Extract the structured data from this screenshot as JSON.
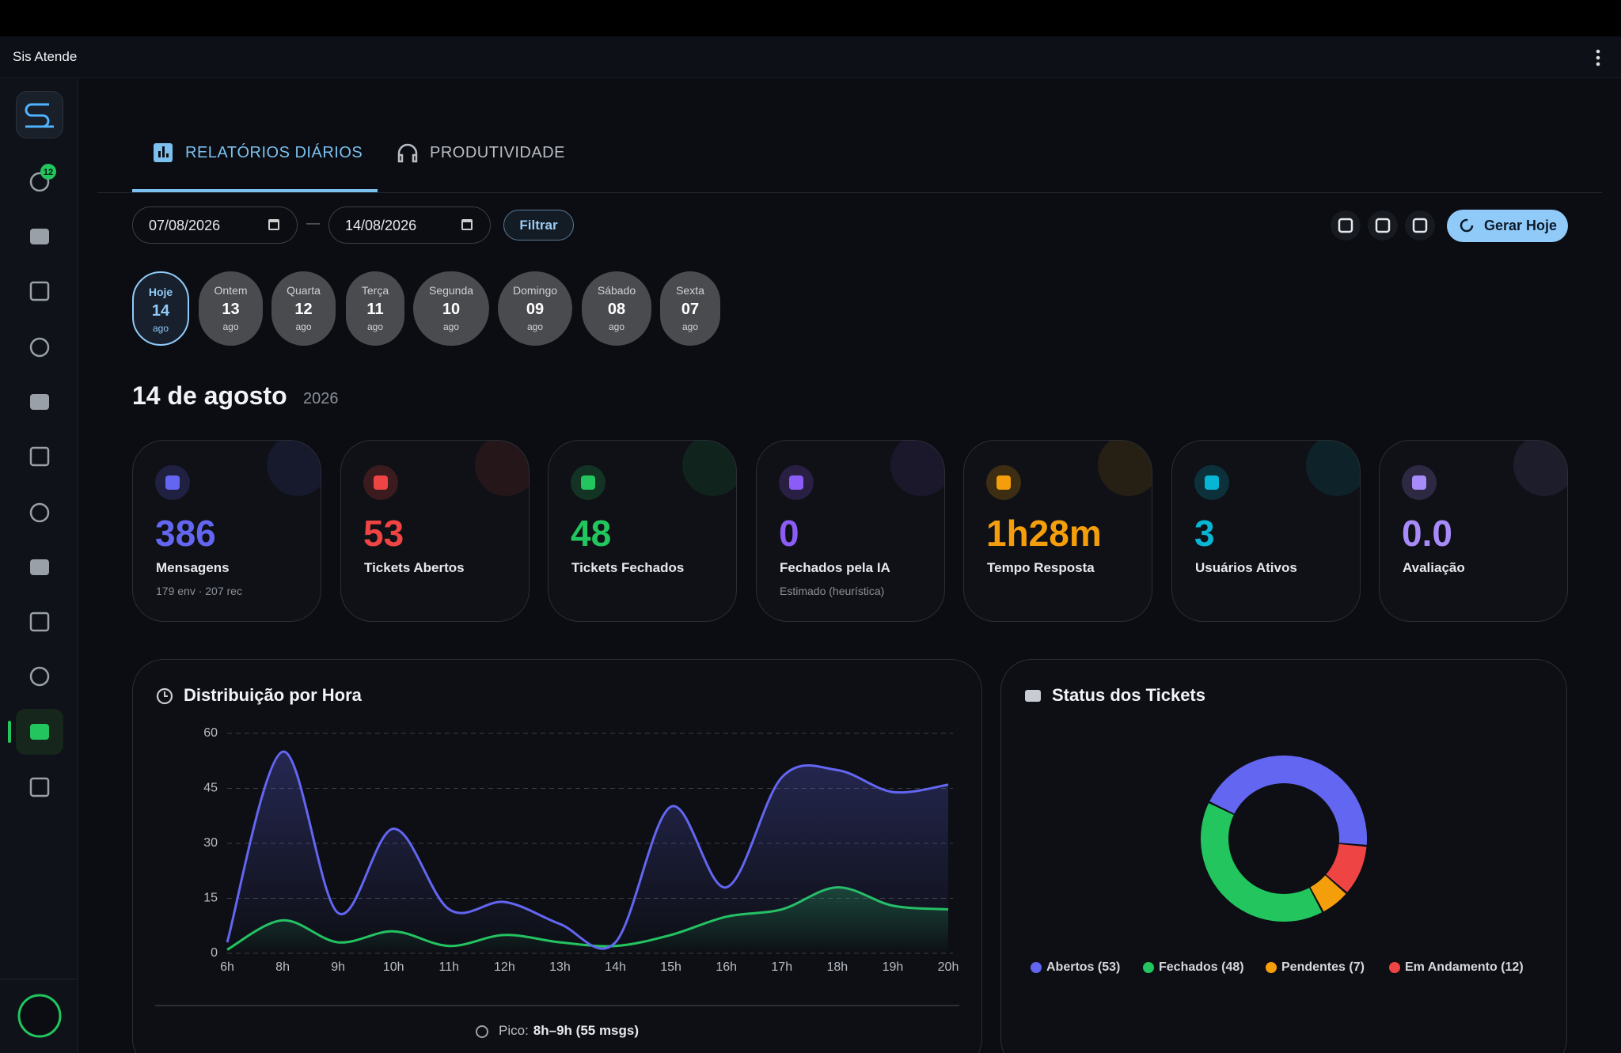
{
  "app_title": "Sis Atende",
  "sidebar": {
    "badge": "12"
  },
  "tabs": [
    "RELATÓRIOS DIÁRIOS",
    "PRODUTIVIDADE"
  ],
  "filters": {
    "start": "07/08/2026",
    "separator": "—",
    "end": "14/08/2026",
    "filter_button": "Filtrar",
    "generate_button": "Gerar Hoje"
  },
  "days": [
    {
      "weekday": "Hoje",
      "day": "14",
      "month": "ago"
    },
    {
      "weekday": "Ontem",
      "day": "13",
      "month": "ago"
    },
    {
      "weekday": "Quarta",
      "day": "12",
      "month": "ago"
    },
    {
      "weekday": "Terça",
      "day": "11",
      "month": "ago"
    },
    {
      "weekday": "Segunda",
      "day": "10",
      "month": "ago"
    },
    {
      "weekday": "Domingo",
      "day": "09",
      "month": "ago"
    },
    {
      "weekday": "Sábado",
      "day": "08",
      "month": "ago"
    },
    {
      "weekday": "Sexta",
      "day": "07",
      "month": "ago"
    }
  ],
  "heading": {
    "date": "14 de agosto",
    "year": "2026"
  },
  "kpis": [
    {
      "value": "386",
      "label": "Mensagens",
      "sub": "179 env · 207 rec",
      "color": "#6366f1"
    },
    {
      "value": "53",
      "label": "Tickets Abertos",
      "color": "#ef4444"
    },
    {
      "value": "48",
      "label": "Tickets Fechados",
      "color": "#22c55e"
    },
    {
      "value": "0",
      "label": "Fechados pela IA",
      "sub": "Estimado (heurística)",
      "color": "#8b5cf6"
    },
    {
      "value": "1h28m",
      "label": "Tempo Resposta",
      "color": "#f59e0b"
    },
    {
      "value": "3",
      "label": "Usuários Ativos",
      "color": "#06b6d4"
    },
    {
      "value": "0.0",
      "label": "Avaliação",
      "color": "#a78bfa"
    }
  ],
  "hourly_chart": {
    "type": "line",
    "title": "Distribuição por Hora",
    "categories": [
      "6h",
      "8h",
      "9h",
      "10h",
      "11h",
      "12h",
      "13h",
      "14h",
      "15h",
      "16h",
      "17h",
      "18h",
      "19h",
      "20h"
    ],
    "series": [
      {
        "color": "#6366f1",
        "values": [
          3,
          55,
          11,
          34,
          12,
          14,
          8,
          3,
          40,
          18,
          48,
          50,
          44,
          46
        ]
      },
      {
        "color": "#22c55e",
        "values": [
          1,
          9,
          3,
          6,
          2,
          5,
          3,
          2,
          5,
          10,
          12,
          18,
          13,
          12
        ]
      }
    ],
    "ylim": [
      0,
      60
    ],
    "yticks": [
      0,
      15,
      30,
      45,
      60
    ],
    "grid": true,
    "footer": {
      "label": "Pico:",
      "value": "8h–9h (55 msgs)"
    }
  },
  "status_chart": {
    "type": "donut",
    "title": "Status dos Tickets",
    "categories": [
      "Abertos (53)",
      "Fechados (48)",
      "Pendentes (7)",
      "Em Andamento (12)"
    ],
    "values": [
      53,
      48,
      7,
      12
    ],
    "colors": [
      "#6366f1",
      "#22c55e",
      "#f59e0b",
      "#ef4444"
    ],
    "draw_order": [
      0,
      3,
      2,
      1
    ]
  }
}
